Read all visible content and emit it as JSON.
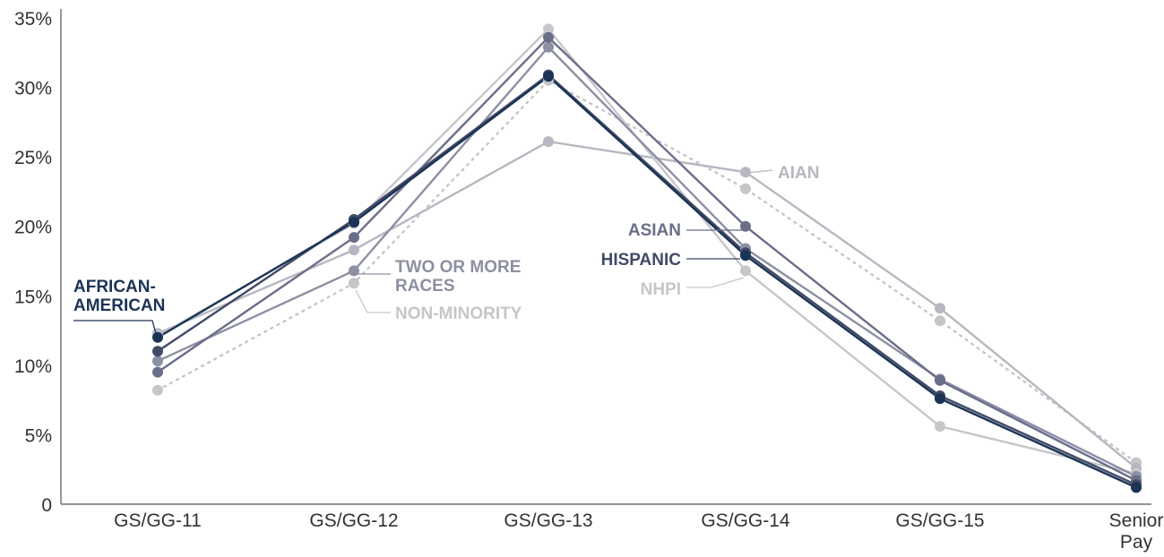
{
  "chart_data": {
    "type": "line",
    "categories": [
      "GS/GG-11",
      "GS/GG-12",
      "GS/GG-13",
      "GS/GG-14",
      "GS/GG-15",
      "Senior Pay"
    ],
    "yticks": [
      "35%",
      "30%",
      "25%",
      "20%",
      "15%",
      "10%",
      "5%",
      "0"
    ],
    "ylim": [
      0,
      35
    ],
    "grid": false,
    "series": [
      {
        "name": "NON-MINORITY",
        "values": [
          8.2,
          15.9,
          30.5,
          22.7,
          13.2,
          3.0
        ],
        "color": "#c6c6c9",
        "style": "dotted"
      },
      {
        "name": "AIAN",
        "values": [
          12.3,
          18.3,
          26.1,
          23.9,
          14.1,
          2.6
        ],
        "color": "#b7b7c1",
        "style": "solid"
      },
      {
        "name": "NHPI",
        "values": [
          12.1,
          20.2,
          34.2,
          16.8,
          5.6,
          2.2
        ],
        "color": "#c6c6cb",
        "style": "solid"
      },
      {
        "name": "TWO OR MORE RACES",
        "values": [
          10.3,
          16.8,
          32.9,
          18.4,
          9.0,
          2.0
        ],
        "color": "#8d8fa3",
        "style": "solid"
      },
      {
        "name": "ASIAN",
        "values": [
          9.5,
          19.2,
          33.6,
          20.0,
          8.9,
          1.7
        ],
        "color": "#6b6e89",
        "style": "solid"
      },
      {
        "name": "HISPANIC",
        "values": [
          11.0,
          20.5,
          30.9,
          18.1,
          7.8,
          1.4
        ],
        "color": "#414a66",
        "style": "solid"
      },
      {
        "name": "AFRICAN-AMERICAN",
        "values": [
          12.0,
          20.3,
          30.8,
          17.9,
          7.6,
          1.2
        ],
        "color": "#1b3355",
        "style": "solid"
      }
    ]
  }
}
